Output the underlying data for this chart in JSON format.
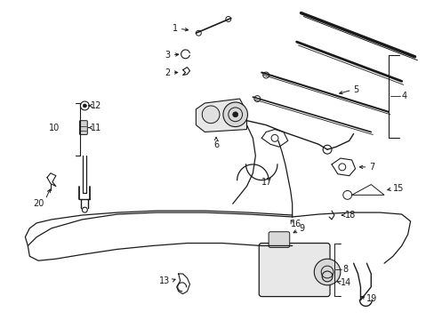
{
  "bg_color": "#ffffff",
  "line_color": "#1a1a1a",
  "title": "",
  "figsize": [
    4.89,
    3.6
  ],
  "dpi": 100
}
